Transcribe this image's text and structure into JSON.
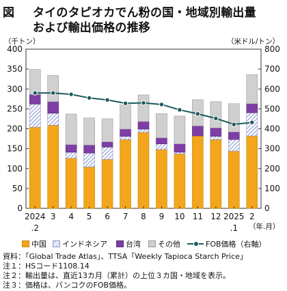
{
  "title": {
    "figure_label": "図",
    "line1": "タイのタピオカでん粉の国・地域別輸出量",
    "line2": "および輸出価格の推移"
  },
  "axes": {
    "left_unit": "（千トン）",
    "right_unit": "（米ドル/トン）",
    "x_unit": "（年.月）"
  },
  "legend": {
    "china": "中国",
    "indonesia": "インドネシア",
    "taiwan": "台湾",
    "others": "その他",
    "fob": "FOB価格（右軸）"
  },
  "notes": {
    "source": "資料：「Global Trade Atlas」、TTSA「Weekly Tapioca Starch Price」",
    "note1": "注１：HSコード1108.14",
    "note2": "注２：輸出量は、直近13カ月（累計）の上位３カ国・地域を表示。",
    "note3": "注３：価格は、バンコクのFOB価格。"
  },
  "colors": {
    "china": "#f3a51c",
    "indonesia": "#9aa7d8",
    "taiwan": "#7e3ea6",
    "others": "#d0d0d0",
    "fob": "#1c5a5e"
  },
  "chart_data": {
    "type": "bar",
    "stacked": true,
    "categories": [
      "2024.2",
      "3",
      "4",
      "5",
      "6",
      "7",
      "8",
      "9",
      "10",
      "11",
      "12",
      "2025.1",
      "2"
    ],
    "x_tick_labels": [
      [
        "2024",
        ".2"
      ],
      [
        "3",
        ""
      ],
      [
        "4",
        ""
      ],
      [
        "5",
        ""
      ],
      [
        "6",
        ""
      ],
      [
        "7",
        ""
      ],
      [
        "8",
        ""
      ],
      [
        "9",
        ""
      ],
      [
        "10",
        ""
      ],
      [
        "11",
        ""
      ],
      [
        "12",
        ""
      ],
      [
        "2025",
        ".1"
      ],
      [
        "2",
        ""
      ]
    ],
    "series": [
      {
        "name": "中国",
        "values": [
          204,
          209,
          126,
          104,
          123,
          173,
          191,
          148,
          137,
          182,
          173,
          144,
          182
        ]
      },
      {
        "name": "インドネシア",
        "values": [
          58,
          30,
          15,
          35,
          31,
          8,
          8,
          14,
          4,
          0,
          8,
          29,
          58
        ]
      },
      {
        "name": "台湾",
        "values": [
          24,
          29,
          19,
          20,
          13,
          18,
          19,
          15,
          21,
          25,
          21,
          19,
          23
        ]
      },
      {
        "name": "その他",
        "values": [
          63,
          66,
          77,
          68,
          58,
          61,
          67,
          61,
          70,
          66,
          66,
          71,
          73
        ]
      }
    ],
    "line_series": {
      "name": "FOB価格（右軸）",
      "axis": "right",
      "values": [
        580,
        580,
        573,
        555,
        545,
        528,
        530,
        522,
        495,
        475,
        452,
        422,
        432
      ]
    },
    "left_axis": {
      "range": [
        0,
        400
      ],
      "ticks": [
        0,
        50,
        100,
        150,
        200,
        250,
        300,
        350,
        400
      ],
      "unit": "（千トン）"
    },
    "right_axis": {
      "range": [
        0,
        800
      ],
      "ticks": [
        0,
        100,
        200,
        300,
        400,
        500,
        600,
        700,
        800
      ],
      "unit": "（米ドル/トン）"
    },
    "x_unit": "（年.月）",
    "grid": false
  }
}
